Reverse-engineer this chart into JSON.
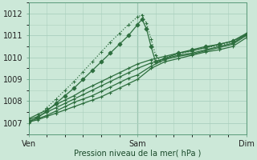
{
  "xlabel": "Pression niveau de la mer( hPa )",
  "bg_color": "#cce8d8",
  "grid_color": "#aacfbe",
  "line_color": "#2d6e3e",
  "xlim": [
    0,
    48
  ],
  "ylim": [
    1006.5,
    1012.5
  ],
  "yticks": [
    1007,
    1008,
    1009,
    1010,
    1011,
    1012
  ],
  "xtick_positions": [
    0,
    24,
    48
  ],
  "xtick_labels": [
    "Ven",
    "Sam",
    "Dim"
  ],
  "vline_color": "#5a9a7a",
  "series": [
    {
      "x": [
        0,
        2,
        4,
        6,
        8,
        10,
        12,
        14,
        16,
        18,
        20,
        22,
        24,
        27,
        30,
        33,
        36,
        39,
        42,
        45,
        48
      ],
      "y": [
        1007.05,
        1007.15,
        1007.3,
        1007.45,
        1007.6,
        1007.75,
        1007.9,
        1008.05,
        1008.2,
        1008.4,
        1008.6,
        1008.8,
        1009.0,
        1009.5,
        1009.8,
        1009.95,
        1010.1,
        1010.25,
        1010.35,
        1010.5,
        1010.9
      ],
      "marker": "+",
      "markersize": 3,
      "lw": 0.9,
      "ls": "-"
    },
    {
      "x": [
        0,
        2,
        4,
        6,
        8,
        10,
        12,
        14,
        16,
        18,
        20,
        22,
        24,
        27,
        30,
        33,
        36,
        39,
        42,
        45,
        48
      ],
      "y": [
        1007.1,
        1007.2,
        1007.35,
        1007.55,
        1007.75,
        1007.95,
        1008.1,
        1008.25,
        1008.45,
        1008.65,
        1008.85,
        1009.05,
        1009.2,
        1009.6,
        1009.9,
        1010.05,
        1010.15,
        1010.3,
        1010.45,
        1010.6,
        1011.0
      ],
      "marker": "+",
      "markersize": 3,
      "lw": 0.9,
      "ls": "-"
    },
    {
      "x": [
        0,
        2,
        4,
        6,
        8,
        10,
        12,
        14,
        16,
        18,
        20,
        22,
        24,
        27,
        30,
        33,
        36,
        39,
        42,
        45,
        48
      ],
      "y": [
        1007.15,
        1007.3,
        1007.5,
        1007.7,
        1007.9,
        1008.1,
        1008.3,
        1008.5,
        1008.7,
        1008.9,
        1009.1,
        1009.3,
        1009.5,
        1009.75,
        1009.95,
        1010.1,
        1010.2,
        1010.35,
        1010.5,
        1010.65,
        1011.05
      ],
      "marker": "+",
      "markersize": 3,
      "lw": 0.9,
      "ls": "-"
    },
    {
      "x": [
        0,
        2,
        4,
        6,
        8,
        10,
        12,
        14,
        16,
        18,
        20,
        22,
        24,
        27,
        30,
        33,
        36,
        39,
        42,
        45,
        48
      ],
      "y": [
        1007.2,
        1007.4,
        1007.6,
        1007.85,
        1008.05,
        1008.25,
        1008.5,
        1008.7,
        1008.9,
        1009.1,
        1009.3,
        1009.5,
        1009.7,
        1009.9,
        1010.05,
        1010.2,
        1010.3,
        1010.45,
        1010.6,
        1010.75,
        1011.1
      ],
      "marker": "+",
      "markersize": 3,
      "lw": 0.9,
      "ls": "-"
    },
    {
      "x": [
        0,
        2,
        4,
        6,
        8,
        10,
        12,
        14,
        16,
        18,
        20,
        22,
        24,
        25,
        26,
        27,
        28,
        30,
        33,
        36,
        39,
        42,
        45,
        48
      ],
      "y": [
        1007.05,
        1007.25,
        1007.55,
        1007.9,
        1008.25,
        1008.6,
        1009.0,
        1009.4,
        1009.8,
        1010.2,
        1010.6,
        1011.0,
        1011.5,
        1011.75,
        1011.3,
        1010.5,
        1009.8,
        1009.95,
        1010.2,
        1010.35,
        1010.5,
        1010.6,
        1010.75,
        1011.05
      ],
      "marker": "D",
      "markersize": 2.5,
      "lw": 0.9,
      "ls": "-"
    },
    {
      "x": [
        0,
        2,
        4,
        6,
        8,
        10,
        12,
        14,
        16,
        18,
        20,
        22,
        24,
        25,
        26,
        27,
        28,
        29,
        30,
        33,
        36,
        39,
        42,
        45,
        48
      ],
      "y": [
        1007.0,
        1007.3,
        1007.7,
        1008.1,
        1008.5,
        1008.9,
        1009.35,
        1009.8,
        1010.25,
        1010.7,
        1011.1,
        1011.5,
        1011.85,
        1011.95,
        1011.55,
        1010.85,
        1010.1,
        1009.85,
        1010.0,
        1010.15,
        1010.3,
        1010.45,
        1010.55,
        1010.7,
        1011.0
      ],
      "marker": "+",
      "markersize": 3,
      "lw": 0.9,
      "ls": ":"
    }
  ]
}
